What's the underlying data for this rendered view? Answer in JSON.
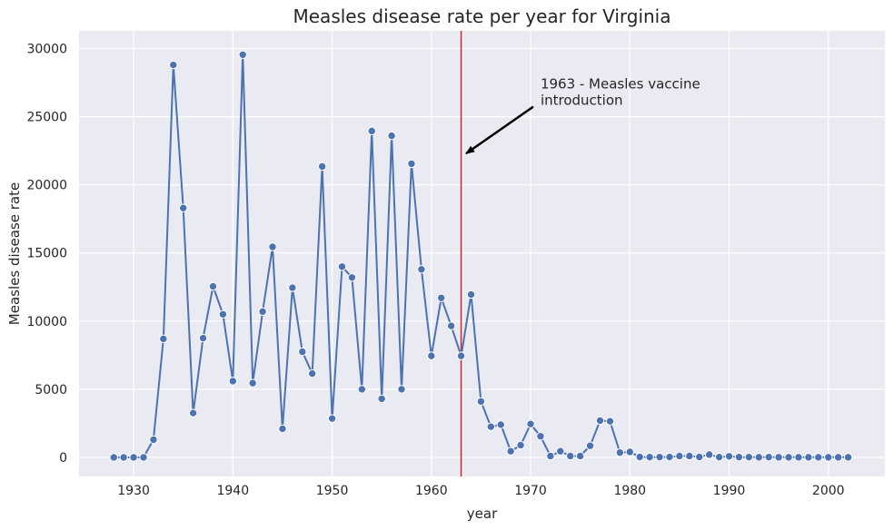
{
  "chart_data": {
    "type": "line",
    "title": "Measles disease rate per year for Virginia",
    "xlabel": "year",
    "ylabel": "Measles disease rate",
    "xlim": [
      1924.5,
      2005.7
    ],
    "ylim": [
      -1400,
      31300
    ],
    "xticks": [
      1930,
      1940,
      1950,
      1960,
      1970,
      1980,
      1990,
      2000
    ],
    "yticks": [
      0,
      5000,
      10000,
      15000,
      20000,
      25000,
      30000
    ],
    "grid": true,
    "series": [
      {
        "x": [
          1928,
          1929,
          1930,
          1931,
          1932,
          1933,
          1934,
          1935,
          1936,
          1937,
          1938,
          1939,
          1940,
          1941,
          1942,
          1943,
          1944,
          1945,
          1946,
          1947,
          1948,
          1949,
          1950,
          1951,
          1952,
          1953,
          1954,
          1955,
          1956,
          1957,
          1958,
          1959,
          1960,
          1961,
          1962,
          1963,
          1964,
          1965,
          1966,
          1967,
          1968,
          1969,
          1970,
          1971,
          1972,
          1973,
          1974,
          1975,
          1976,
          1977,
          1978,
          1979,
          1980,
          1981,
          1982,
          1983,
          1984,
          1985,
          1986,
          1987,
          1988,
          1989,
          1990,
          1991,
          1992,
          1993,
          1994,
          1995,
          1996,
          1997,
          1998,
          1999,
          2000,
          2001,
          2002
        ],
        "values": [
          0,
          0,
          0,
          0,
          1300,
          8700,
          28800,
          18300,
          3250,
          8750,
          12550,
          10500,
          5600,
          29550,
          5450,
          10700,
          15450,
          2100,
          12450,
          7750,
          6150,
          21350,
          2850,
          14000,
          13200,
          5000,
          23950,
          4300,
          23600,
          5000,
          21550,
          13800,
          7450,
          11700,
          9650,
          7450,
          11950,
          4100,
          2250,
          2400,
          450,
          900,
          2450,
          1550,
          100,
          450,
          100,
          100,
          850,
          2700,
          2650,
          350,
          400,
          30,
          20,
          20,
          30,
          100,
          100,
          30,
          200,
          20,
          80,
          20,
          20,
          10,
          20,
          10,
          10,
          10,
          10,
          10,
          10,
          10,
          10
        ]
      }
    ],
    "colors": {
      "line": "#4c72b0",
      "vline": "#d62728",
      "background": "#eaeaf2",
      "grid": "#ffffff"
    },
    "vertical_line": {
      "x": 1963
    },
    "annotation": {
      "lines": [
        "1963 - Measles vaccine",
        "introduction"
      ],
      "text_x": 1971,
      "text_y": 26000,
      "arrow_to_x": 1963.5,
      "arrow_to_y": 22300
    }
  }
}
